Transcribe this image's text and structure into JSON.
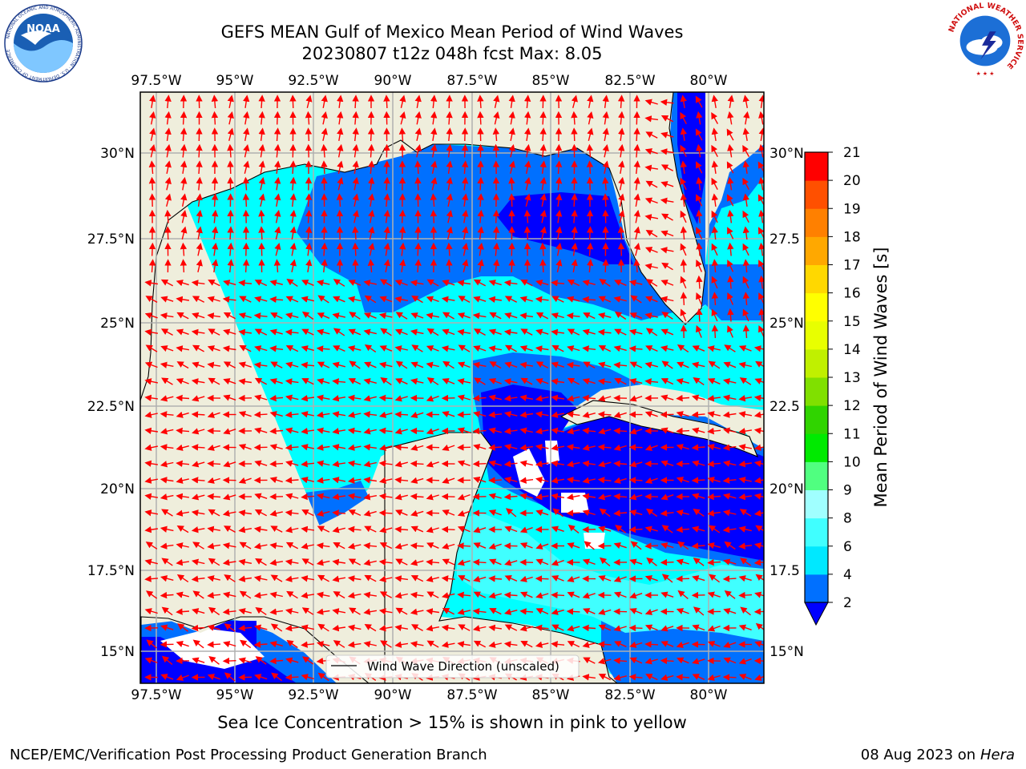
{
  "title": {
    "line1": "GEFS MEAN Gulf of Mexico Mean Period of Wind Waves",
    "line2": "20230807 t12z 048h fcst   Max: 8.05"
  },
  "logos": {
    "noaa_text": "NOAA",
    "noaa_ring_text": "NATIONAL OCEANIC AND ATMOSPHERIC ADMINISTRATION · U.S. DEPARTMENT OF COMMERCE",
    "nws_ring_text": "NATIONAL WEATHER SERVICE"
  },
  "map": {
    "lon_labels": [
      "97.5°W",
      "95°W",
      "92.5°W",
      "90°W",
      "87.5°W",
      "85°W",
      "82.5°W",
      "80°W"
    ],
    "lat_labels_left": [
      "30°N",
      "27.5°N",
      "25°N",
      "22.5°N",
      "20°N",
      "17.5°N",
      "15°N"
    ],
    "lat_labels_right": [
      "30°N",
      "27.5",
      "25°N",
      "22.5",
      "20°N",
      "17.5",
      "15°N"
    ],
    "lon_range": [
      -98.0,
      -78.1
    ],
    "lat_range": [
      14.0,
      31.7
    ],
    "ocean_color": "#00ffff",
    "land_color": "#efeedc",
    "arrow_color": "#ff0000",
    "legend_label": "Wind Wave Direction (unscaled)"
  },
  "colorbar": {
    "label": "Mean Period of Wind Waves [s]",
    "tick_labels": [
      "2",
      "4",
      "6",
      "8",
      "9",
      "10",
      "11",
      "12",
      "13",
      "14",
      "15",
      "16",
      "17",
      "18",
      "19",
      "20",
      "21"
    ],
    "colors": [
      "#0070ff",
      "#00e8ff",
      "#40ffff",
      "#a0ffff",
      "#50ff80",
      "#00ea00",
      "#30d400",
      "#80e000",
      "#c0f000",
      "#e8ff00",
      "#ffff00",
      "#ffd800",
      "#ffa800",
      "#ff8000",
      "#ff5000",
      "#ff0000"
    ],
    "extend_color": "#0000ff"
  },
  "caption": "Sea Ice Concentration > 15% is shown in pink to yellow",
  "footer": {
    "left": "NCEP/EMC/Verification Post Processing Product Generation Branch",
    "right_date": "08 Aug 2023 on",
    "right_machine": "Hera"
  }
}
